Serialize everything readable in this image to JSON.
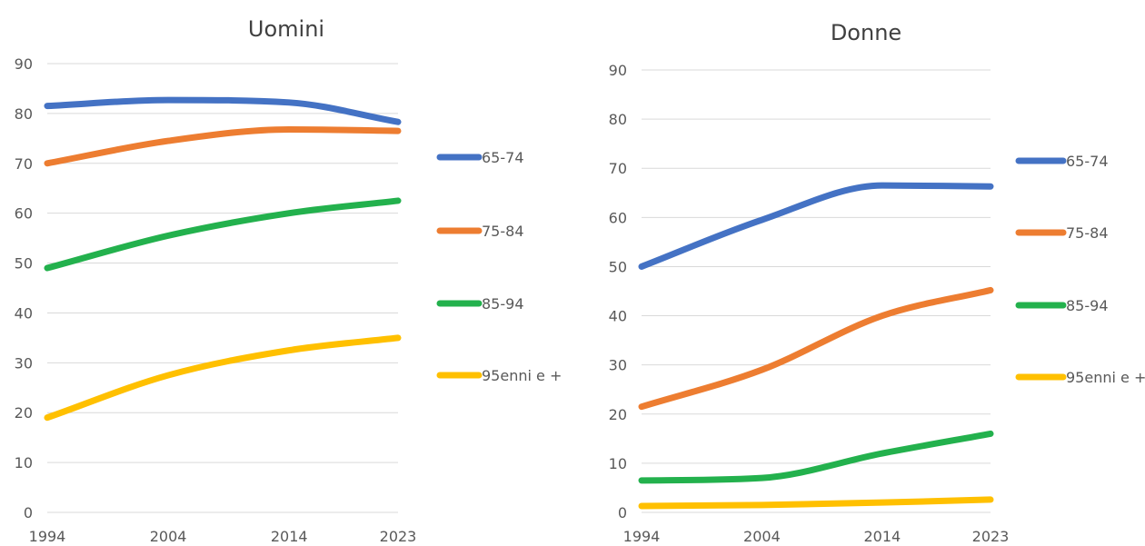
{
  "colors": {
    "series_65_74": "#4472c4",
    "series_75_84": "#ed7d31",
    "series_85_94": "#23b14d",
    "series_95_plus": "#ffc000",
    "grid": "#d9d9d9",
    "text": "#595959"
  },
  "chart_data": [
    {
      "type": "line",
      "title": "Uomini",
      "xlabel": "",
      "ylabel": "",
      "x": [
        1994,
        2004,
        2014,
        2023
      ],
      "x_tick_labels": [
        "1994",
        "2004",
        "2014",
        "2023"
      ],
      "ylim": [
        0,
        90
      ],
      "y_ticks": [
        "0",
        "10",
        "20",
        "30",
        "40",
        "50",
        "60",
        "70",
        "80",
        "90"
      ],
      "grid": true,
      "legend_position": "right",
      "smooth": true,
      "series": [
        {
          "name": "65-74",
          "color": "#4472c4",
          "values": [
            81.5,
            82.7,
            82.2,
            78.3
          ]
        },
        {
          "name": "75-84",
          "color": "#ed7d31",
          "values": [
            70.0,
            74.5,
            76.8,
            76.5
          ]
        },
        {
          "name": "85-94",
          "color": "#23b14d",
          "values": [
            49.0,
            55.5,
            60.0,
            62.5
          ]
        },
        {
          "name": "95enni e +",
          "color": "#ffc000",
          "values": [
            19.0,
            27.5,
            32.5,
            35.0
          ]
        }
      ]
    },
    {
      "type": "line",
      "title": "Donne",
      "xlabel": "",
      "ylabel": "",
      "x": [
        1994,
        2004,
        2014,
        2023
      ],
      "x_tick_labels": [
        "1994",
        "2004",
        "2014",
        "2023"
      ],
      "ylim": [
        0,
        90
      ],
      "y_ticks": [
        "0",
        "10",
        "20",
        "30",
        "40",
        "50",
        "60",
        "70",
        "80",
        "90"
      ],
      "grid": true,
      "legend_position": "right",
      "smooth": true,
      "series": [
        {
          "name": "65-74",
          "color": "#4472c4",
          "values": [
            50.0,
            59.5,
            66.5,
            66.3
          ]
        },
        {
          "name": "75-84",
          "color": "#ed7d31",
          "values": [
            21.5,
            29.0,
            40.0,
            45.2
          ]
        },
        {
          "name": "85-94",
          "color": "#23b14d",
          "values": [
            6.5,
            7.0,
            12.0,
            16.0
          ]
        },
        {
          "name": "95enni e +",
          "color": "#ffc000",
          "values": [
            1.3,
            1.5,
            2.0,
            2.6
          ]
        }
      ]
    }
  ]
}
